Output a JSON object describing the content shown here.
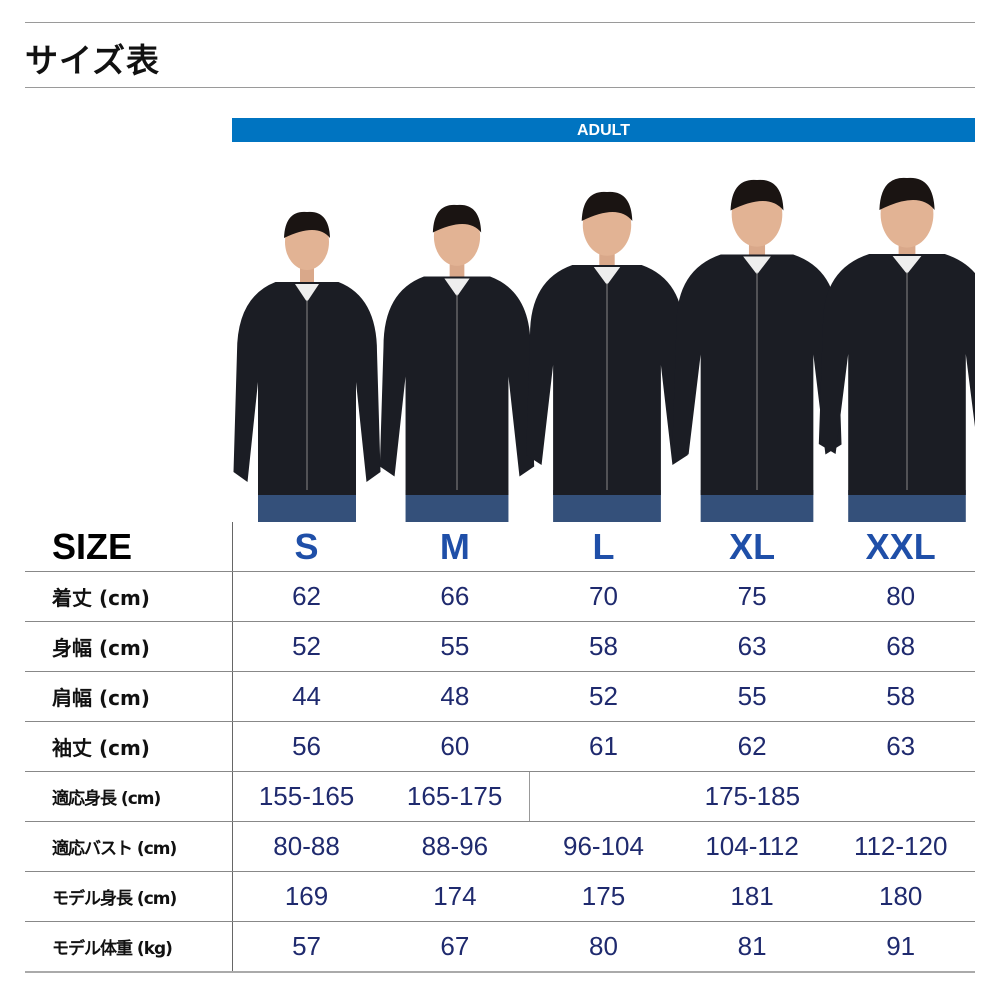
{
  "title": "サイズ表",
  "band_label": "ADULT",
  "colors": {
    "band": "#0074c1",
    "size_heading": "#1f4fa8",
    "values": "#1f2a6e"
  },
  "table": {
    "header": {
      "label": "SIZE",
      "sizes": [
        "S",
        "M",
        "L",
        "XL",
        "XXL"
      ]
    },
    "rows": [
      {
        "label": "着丈 (cm)",
        "values": [
          "62",
          "66",
          "70",
          "75",
          "80"
        ]
      },
      {
        "label": "身幅 (cm)",
        "values": [
          "52",
          "55",
          "58",
          "63",
          "68"
        ]
      },
      {
        "label": "肩幅 (cm)",
        "values": [
          "44",
          "48",
          "52",
          "55",
          "58"
        ]
      },
      {
        "label": "袖丈 (cm)",
        "values": [
          "56",
          "60",
          "61",
          "62",
          "63"
        ]
      },
      {
        "label": "適応身長 (cm)",
        "values": [
          "155-165",
          "165-175",
          "175-185"
        ]
      },
      {
        "label": "適応バスト (cm)",
        "values": [
          "80-88",
          "88-96",
          "96-104",
          "104-112",
          "112-120"
        ]
      },
      {
        "label": "モデル身長 (cm)",
        "values": [
          "169",
          "174",
          "175",
          "181",
          "180"
        ]
      },
      {
        "label": "モデル体重 (kg)",
        "values": [
          "57",
          "67",
          "80",
          "81",
          "91"
        ]
      }
    ]
  }
}
